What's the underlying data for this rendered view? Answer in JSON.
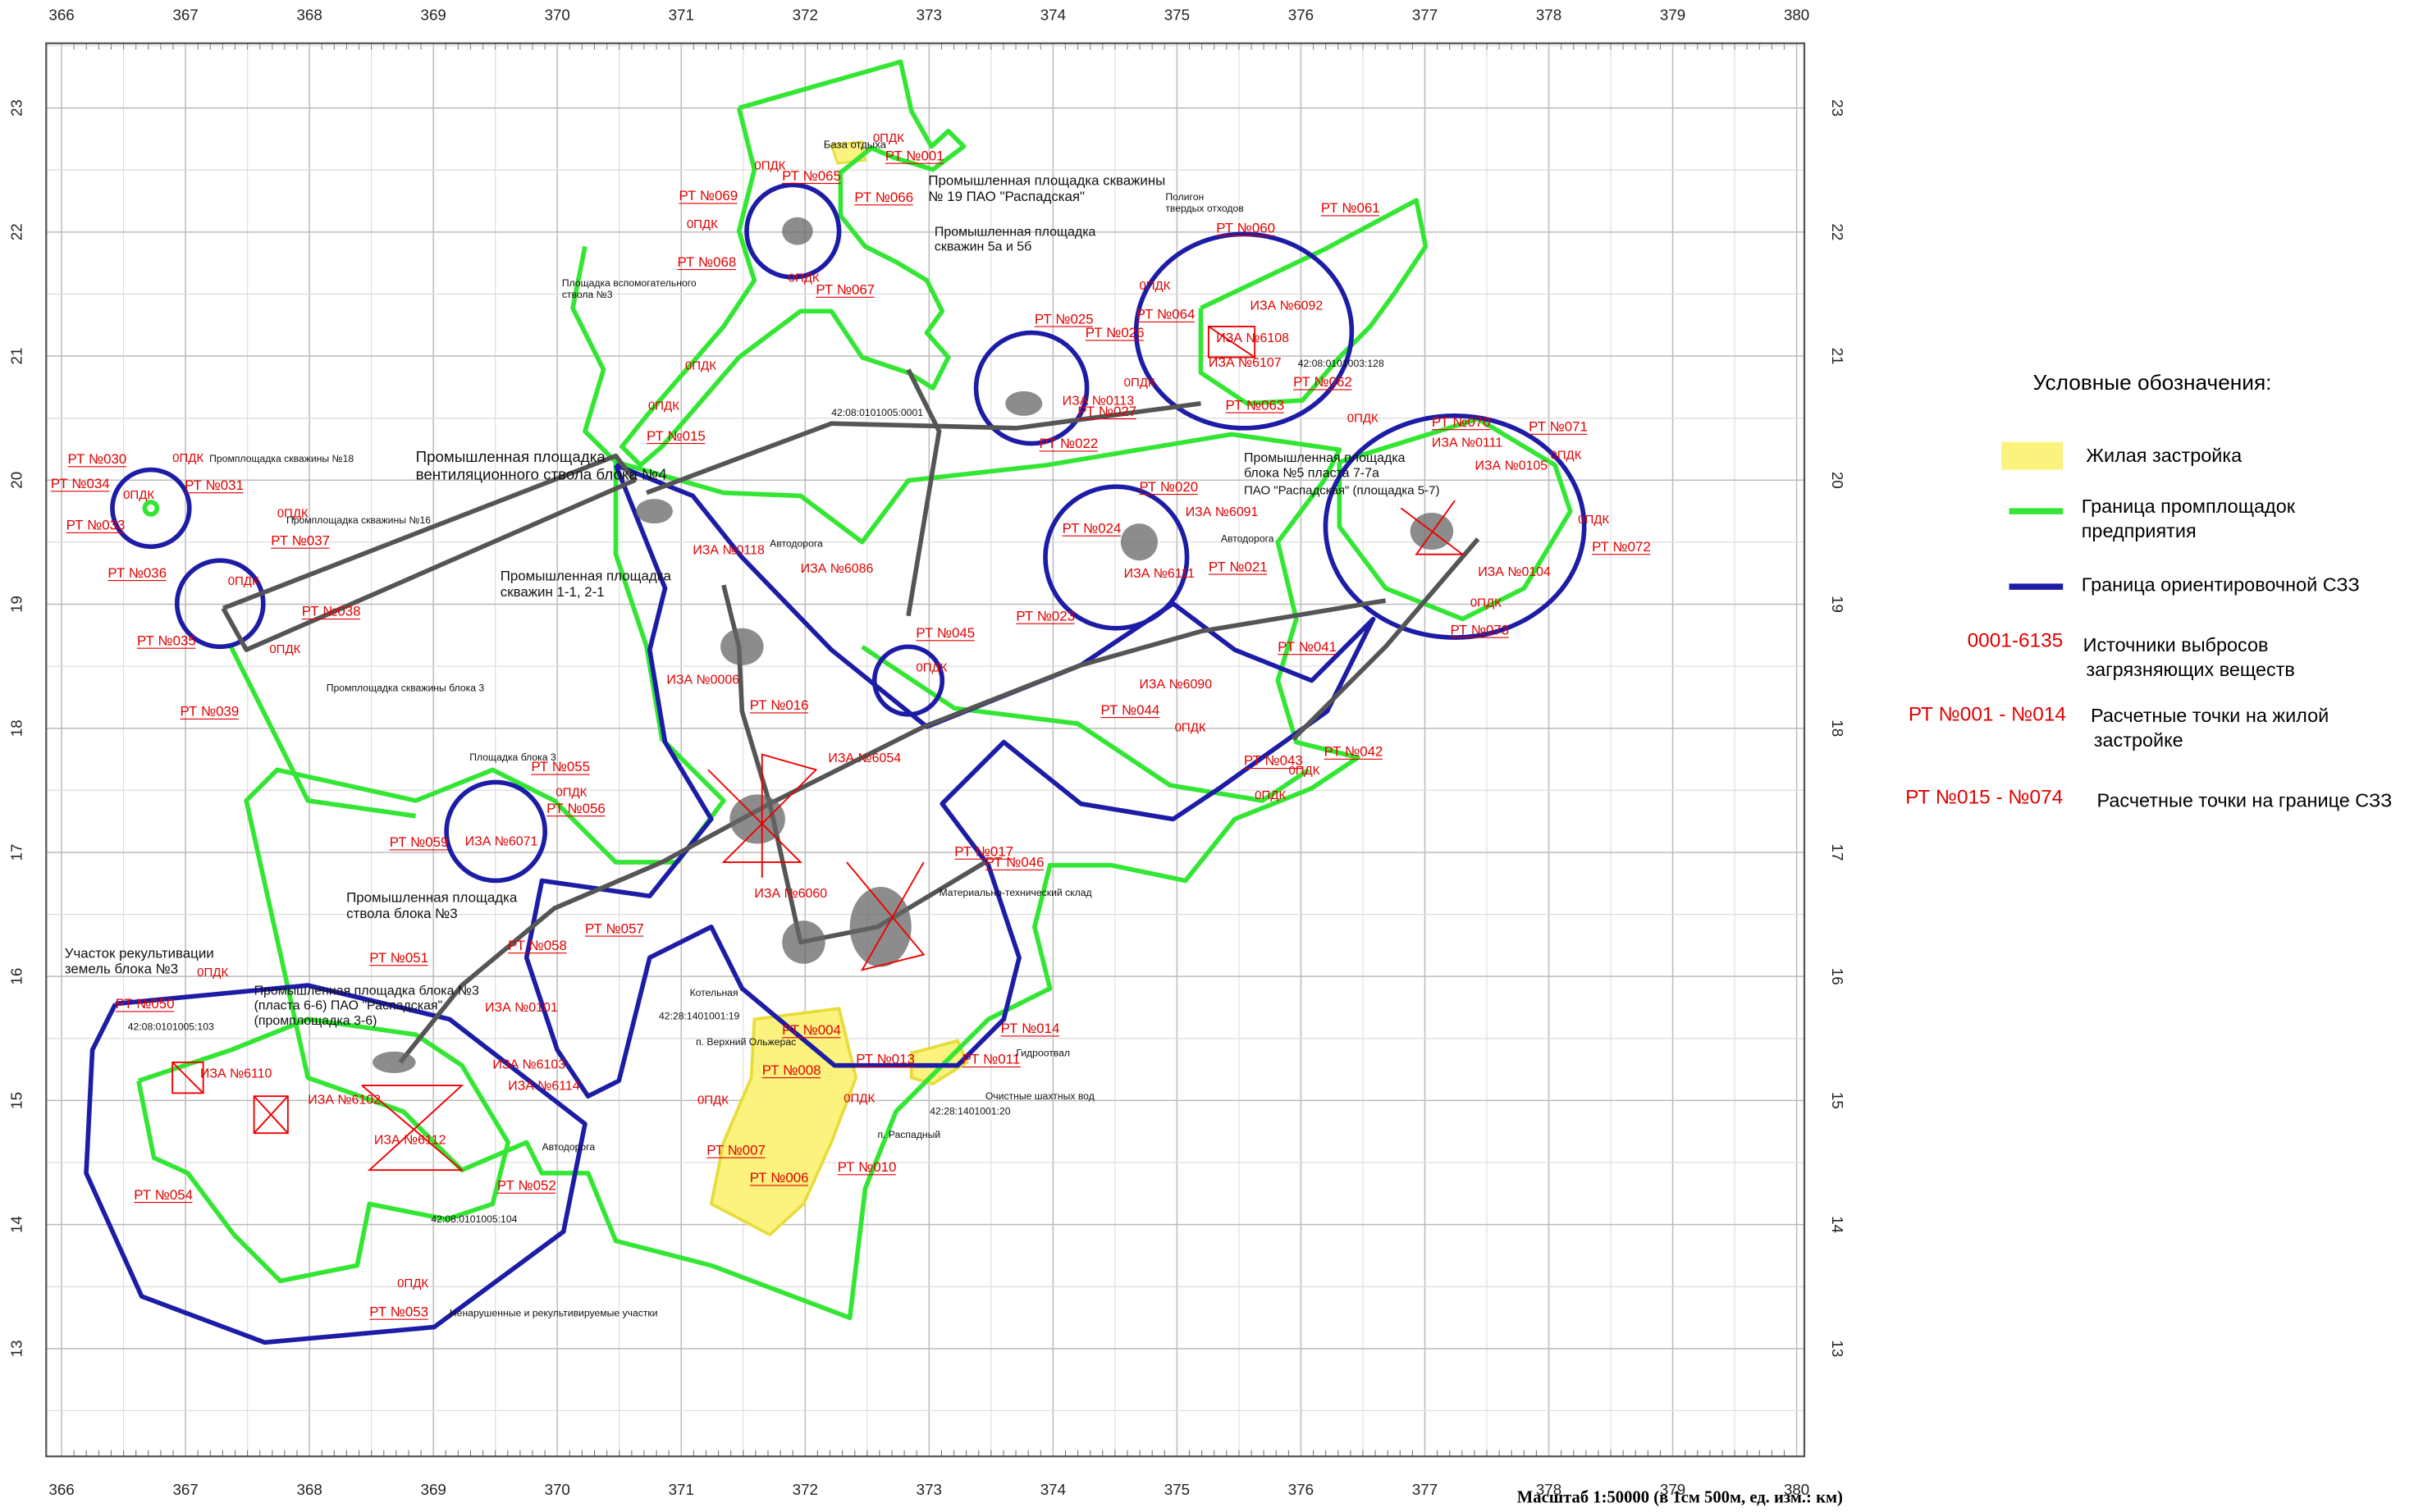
{
  "x_axis": {
    "ticks": [
      366,
      367,
      368,
      369,
      370,
      371,
      372,
      373,
      374,
      375,
      376,
      377,
      378,
      379,
      380
    ]
  },
  "y_axis": {
    "ticks": [
      13,
      14,
      15,
      16,
      17,
      18,
      19,
      20,
      21,
      22,
      23
    ]
  },
  "scale_note": "Масштаб 1:50000 (в 1см 500м, ед. изм.: км)",
  "legend": {
    "title": "Условные обозначения:",
    "items": [
      {
        "lines": [
          "Жилая застройка"
        ]
      },
      {
        "lines": [
          "Граница промплощадок",
          "предприятия"
        ]
      },
      {
        "lines": [
          "Граница ориентировочной СЗЗ"
        ]
      },
      {
        "code": "0001-6135",
        "lines": [
          "Источники выбросов",
          "загрязняющих веществ"
        ]
      },
      {
        "code": "РТ №001 - №014",
        "lines": [
          "Расчетные точки на  жилой",
          "застройке"
        ]
      },
      {
        "code": "РТ №015 - №074",
        "lines": [
          "Расчетные точки на  границе СЗЗ"
        ]
      }
    ]
  },
  "rt_labels": [
    "РТ №001",
    "РТ №065",
    "РТ №066",
    "РТ №069",
    "РТ №068",
    "РТ №067",
    "РТ №061",
    "РТ №060",
    "РТ №064",
    "РТ №063",
    "РТ №062",
    "РТ №070",
    "РТ №071",
    "РТ №072",
    "РТ №073",
    "РТ №030",
    "РТ №034",
    "РТ №031",
    "РТ №033",
    "РТ №037",
    "РТ №036",
    "РТ №038",
    "РТ №035",
    "РТ №039",
    "РТ №015",
    "РТ №016",
    "РТ №055",
    "РТ №056",
    "РТ №059",
    "РТ №057",
    "РТ №058",
    "РТ №051",
    "РТ №050",
    "РТ №054",
    "РТ №052",
    "РТ №053",
    "РТ №004",
    "РТ №008",
    "РТ №007",
    "РТ №006",
    "РТ №013",
    "РТ №010",
    "РТ №011",
    "РТ №014",
    "РТ №042",
    "РТ №044",
    "РТ №024",
    "РТ №020",
    "РТ №021",
    "РТ №041",
    "РТ №026",
    "РТ №025",
    "РТ №022",
    "РТ №023",
    "РТ №043",
    "РТ №045",
    "РТ №017",
    "РТ №046",
    "РТ №027"
  ],
  "iza_labels": [
    "ИЗА №6092",
    "ИЗА №6107",
    "ИЗА №6108",
    "ИЗА №0105",
    "ИЗА №0111",
    "ИЗА №0104",
    "ИЗА №6110",
    "ИЗА №6102",
    "ИЗА №6112",
    "ИЗА №6114",
    "ИЗА №6103",
    "ИЗА №0101",
    "ИЗА №0006",
    "ИЗА №6071",
    "ИЗА №6086",
    "ИЗА №0118",
    "ИЗА №6091",
    "ИЗА №0113",
    "ИЗА №6111",
    "ИЗА №6090",
    "ИЗА №6054",
    "ИЗА №6060"
  ],
  "pdk_label": "0ПДК",
  "place_labels": [
    {
      "lines": [
        "База отдыха"
      ]
    },
    {
      "lines": [
        "Промышленная площадка скважины",
        "№ 19 ПАО \"Распадская\""
      ]
    },
    {
      "lines": [
        "Промышленная площадка",
        "скважин 5а и 5б"
      ]
    },
    {
      "lines": [
        "Полигон",
        "твердых отходов"
      ]
    },
    {
      "lines": [
        "Площадка вспомогательного",
        "ствола №3"
      ]
    },
    {
      "lines": [
        "Промышленная площадка",
        "вентиляционного ствола блока №4"
      ]
    },
    {
      "lines": [
        "Промплощадка скважины №18"
      ]
    },
    {
      "lines": [
        "Промплощадка скважины №16"
      ]
    },
    {
      "lines": [
        "Промышленная площадка",
        "скважин 1-1, 2-1"
      ]
    },
    {
      "lines": [
        "Промплощадка скважины блока 3"
      ]
    },
    {
      "lines": [
        "Промышленная площадка",
        "блока №5 пласта 7-7а"
      ]
    },
    {
      "lines": [
        "ПАО \"Распадская\" (площадка 5-7)"
      ]
    },
    {
      "lines": [
        "Промышленная площадка",
        "ствола блока №3"
      ]
    },
    {
      "lines": [
        "Участок рекультивации",
        "земель блока №3"
      ]
    },
    {
      "lines": [
        "Промышленная площадка блока №3",
        "(пласта 6-6) ПАО \"Распадская\"",
        "(промплощадка 3-6)"
      ]
    },
    {
      "lines": [
        "п. Верхний Ольжерас"
      ]
    },
    {
      "lines": [
        "п. Распадный"
      ]
    },
    {
      "lines": [
        "Ненарушенные и рекультивируемые участки"
      ]
    },
    {
      "lines": [
        "Гидроотвал"
      ]
    },
    {
      "lines": [
        "Очистные шахтных вод"
      ]
    },
    {
      "lines": [
        "Материально-технический склад"
      ]
    },
    {
      "lines": [
        "Котельная"
      ]
    },
    {
      "lines": [
        "Площадка блока 3"
      ]
    },
    {
      "lines": [
        "Автодорога"
      ]
    },
    {
      "lines": [
        "Автодорога"
      ]
    },
    {
      "lines": [
        "Автодорога"
      ]
    },
    {
      "lines": [
        "42:08:0101005:0001"
      ]
    },
    {
      "lines": [
        "42:08:0101005:103"
      ]
    },
    {
      "lines": [
        "42:08:0101005:104"
      ]
    },
    {
      "lines": [
        "42:28:1401001:19"
      ]
    },
    {
      "lines": [
        "42:28:1401001:20"
      ]
    },
    {
      "lines": [
        "42:08:0101003:128"
      ]
    }
  ]
}
